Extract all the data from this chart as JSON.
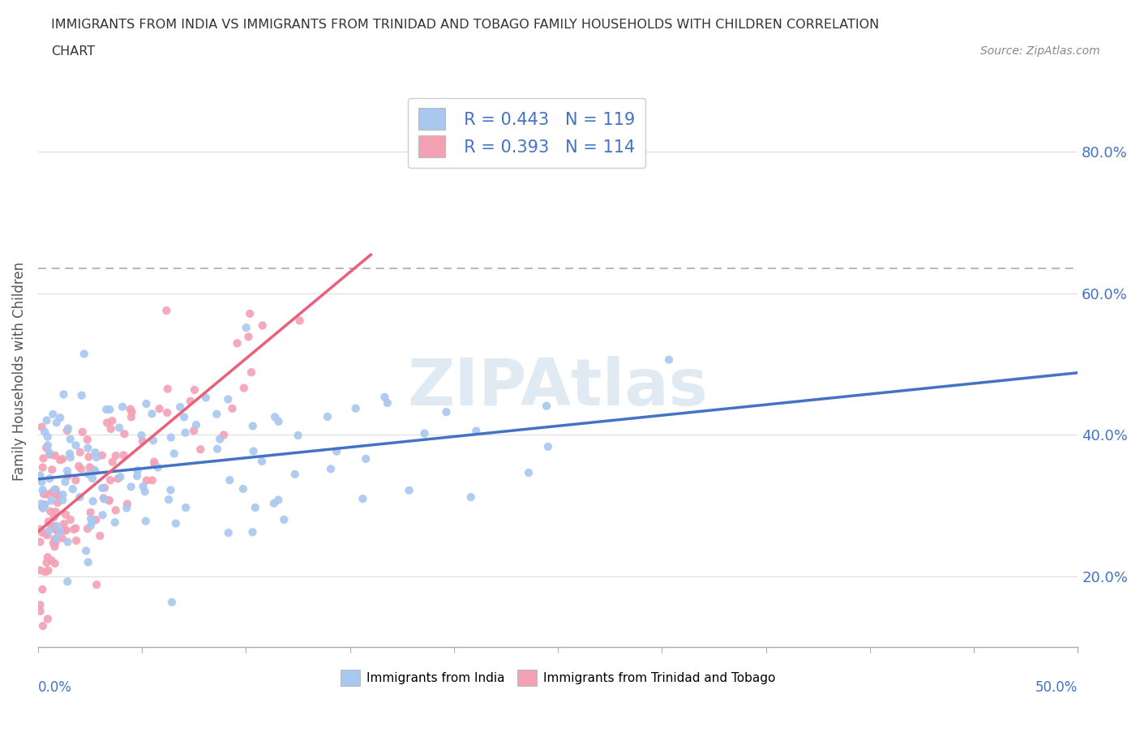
{
  "title_line1": "IMMIGRANTS FROM INDIA VS IMMIGRANTS FROM TRINIDAD AND TOBAGO FAMILY HOUSEHOLDS WITH CHILDREN CORRELATION",
  "title_line2": "CHART",
  "source_text": "Source: ZipAtlas.com",
  "ylabel": "Family Households with Children",
  "ytick_labels": [
    "20.0%",
    "40.0%",
    "60.0%",
    "80.0%"
  ],
  "ytick_values": [
    0.2,
    0.4,
    0.6,
    0.8
  ],
  "legend_india_r": "R = 0.443",
  "legend_india_n": "N = 119",
  "legend_tt_r": "R = 0.393",
  "legend_tt_n": "N = 114",
  "india_scatter_color": "#a8c8f0",
  "tt_scatter_color": "#f4a0b5",
  "india_line_color": "#4472c4",
  "tt_line_color": "#e8607a",
  "background_color": "#ffffff",
  "grid_color": "#dddddd",
  "axis_label_color": "#4472c4",
  "watermark_color": "#ccdcec",
  "xlim": [
    0.0,
    0.5
  ],
  "ylim": [
    0.1,
    0.88
  ],
  "dashed_line_y": 0.635
}
